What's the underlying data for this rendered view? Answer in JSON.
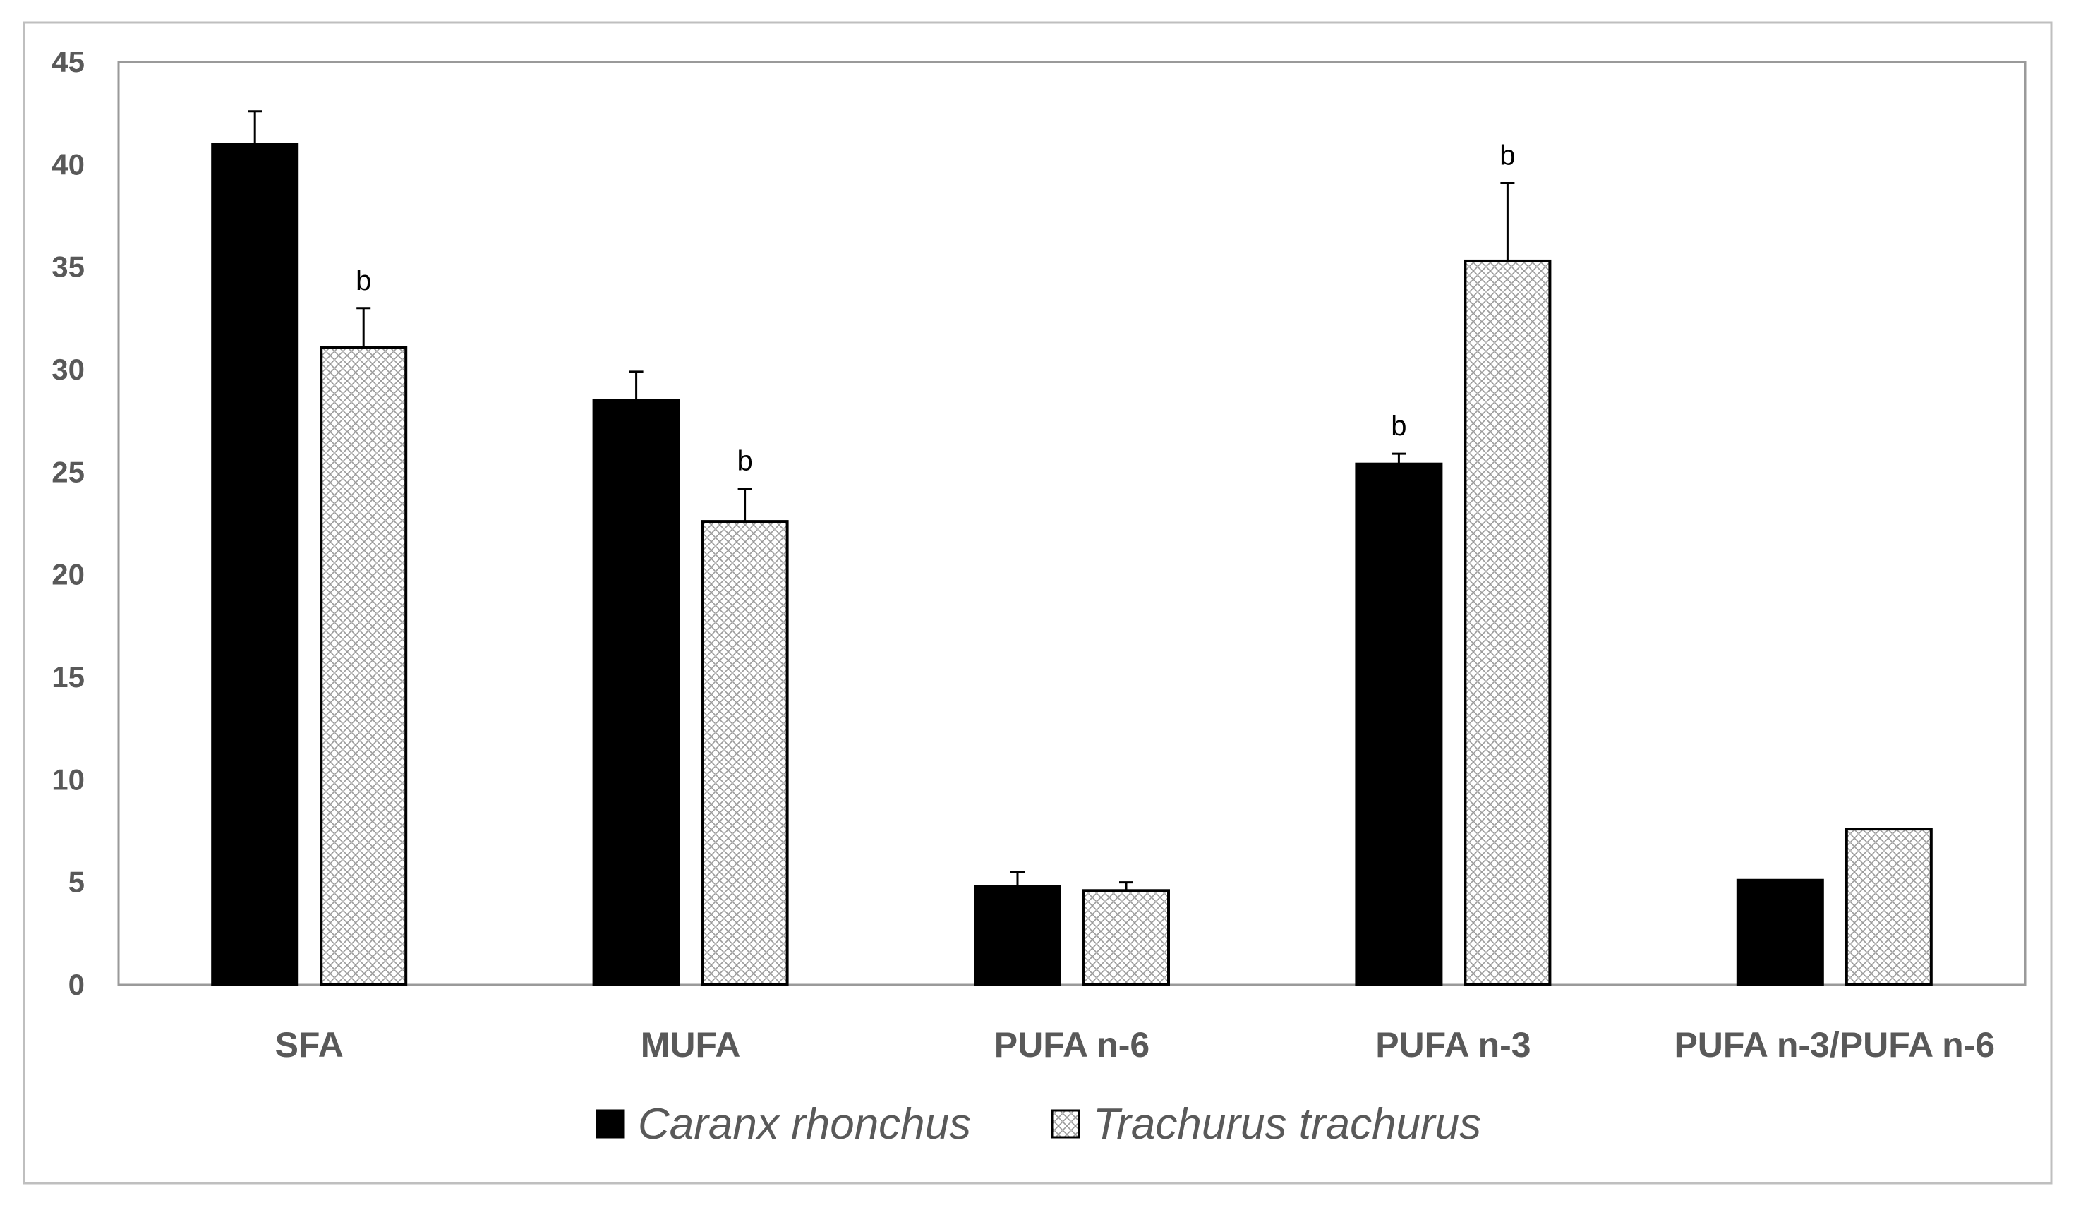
{
  "chart_data": {
    "type": "bar",
    "title": "",
    "xlabel": "",
    "ylabel": "",
    "categories": [
      "SFA",
      "MUFA",
      "PUFA n-6",
      "PUFA n-3",
      "PUFA n-3/PUFA n-6"
    ],
    "ylim": [
      0,
      45
    ],
    "yticks": [
      0,
      5,
      10,
      15,
      20,
      25,
      30,
      35,
      40,
      45
    ],
    "grid": false,
    "legend_position": "bottom",
    "series": [
      {
        "name": "Caranx rhonchus",
        "fill": "solid-black",
        "color": "#000000",
        "values": [
          41.0,
          28.5,
          4.8,
          25.4,
          5.1
        ],
        "errors": [
          1.6,
          1.4,
          0.7,
          0.5,
          null
        ],
        "significance": [
          "",
          "",
          "",
          "b",
          ""
        ]
      },
      {
        "name": "Trachurus trachurus",
        "fill": "crosshatch-pattern",
        "color": "#c8c8c8",
        "values": [
          31.1,
          22.6,
          4.6,
          35.3,
          7.6
        ],
        "errors": [
          1.9,
          1.6,
          0.4,
          3.8,
          null
        ],
        "significance": [
          "b",
          "b",
          "",
          "b",
          ""
        ]
      }
    ]
  }
}
